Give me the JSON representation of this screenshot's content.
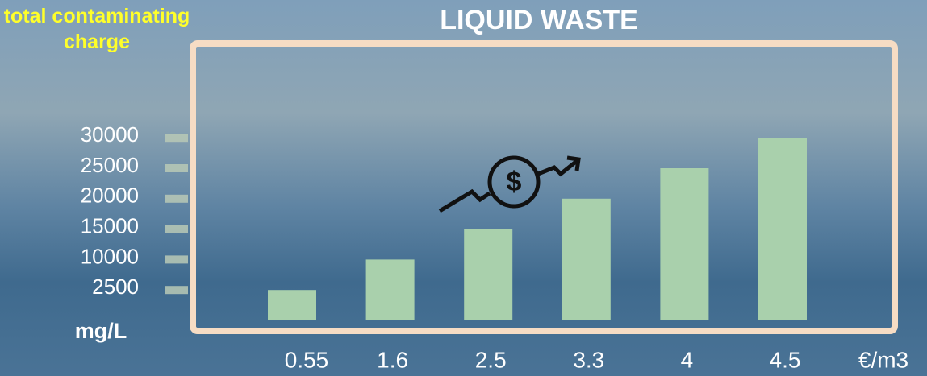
{
  "chart_data": {
    "type": "bar",
    "title": "LIQUID WASTE",
    "y_label": "total contaminating charge",
    "y_unit": "mg/L",
    "x_unit": "€/m3",
    "categories": [
      "0.55",
      "1.6",
      "2.5",
      "3.3",
      "4",
      "4.5"
    ],
    "values": [
      2500,
      10000,
      15000,
      20000,
      25000,
      30000
    ],
    "color": "#a9d0ac",
    "ylim": [
      0,
      30000
    ],
    "yticks": [
      2500,
      10000,
      15000,
      20000,
      25000,
      30000
    ]
  }
}
